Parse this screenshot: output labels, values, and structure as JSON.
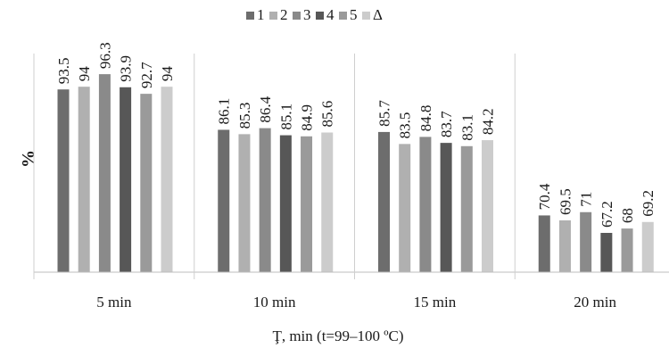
{
  "chart_data": {
    "type": "bar",
    "title": "",
    "xlabel": "Ţ, min (t=99–100 ºC)",
    "ylabel": "%",
    "categories": [
      "5 min",
      "10 min",
      "15 min",
      "20 min"
    ],
    "ylim": [
      60,
      100
    ],
    "grid": false,
    "legend_position": "top",
    "series": [
      {
        "name": "1",
        "color": "#6d6d6d",
        "values": [
          93.5,
          86.1,
          85.7,
          70.4
        ]
      },
      {
        "name": "2",
        "color": "#b0b0b0",
        "values": [
          94,
          85.3,
          83.5,
          69.5
        ]
      },
      {
        "name": "3",
        "color": "#8a8a8a",
        "values": [
          96.3,
          86.4,
          84.8,
          71
        ]
      },
      {
        "name": "4",
        "color": "#575757",
        "values": [
          93.9,
          85.1,
          83.7,
          67.2
        ]
      },
      {
        "name": "5",
        "color": "#9a9a9a",
        "values": [
          92.7,
          84.9,
          83.1,
          68
        ]
      },
      {
        "name": "Δ",
        "color": "#cccccc",
        "values": [
          94,
          85.6,
          84.2,
          69.2
        ]
      }
    ]
  }
}
